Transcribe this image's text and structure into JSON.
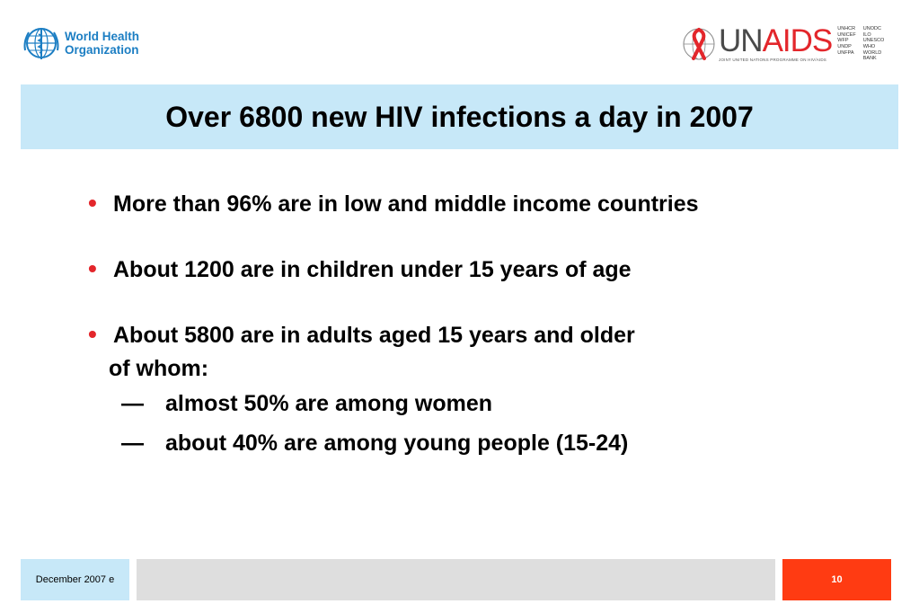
{
  "header": {
    "who_logo": {
      "line1": "World Health",
      "line2": "Organization"
    },
    "unaids_logo": {
      "word_un": "UN",
      "word_aids": "AIDS",
      "subtitle": "JOINT UNITED NATIONS PROGRAMME ON HIV/AIDS",
      "cosponsors_col1": [
        "UNHCR",
        "UNICEF",
        "WFP",
        "UNDP",
        "UNFPA"
      ],
      "cosponsors_col2": [
        "UNODC",
        "ILO",
        "UNESCO",
        "WHO",
        "WORLD BANK"
      ]
    }
  },
  "title": "Over 6800 new HIV infections a day in 2007",
  "bullets": {
    "b1": "More than 96% are in low and middle income countries",
    "b2": "About 1200 are in children under 15 years of age",
    "b3": "About 5800 are in adults aged 15 years and older",
    "b3_cont": "of whom:",
    "sub1": "almost 50% are among women",
    "sub2": "about 40% are among young people (15-24)",
    "dash_glyph": "—",
    "bullet_glyph": "•"
  },
  "footer": {
    "date": "December 2007  e",
    "page": "10"
  },
  "colors": {
    "title_band": "#c7e8f8",
    "bullet": "#e3262b",
    "footer_accent": "#ff3b12",
    "footer_mid": "#dedede",
    "who_blue": "#1c7ec3"
  }
}
